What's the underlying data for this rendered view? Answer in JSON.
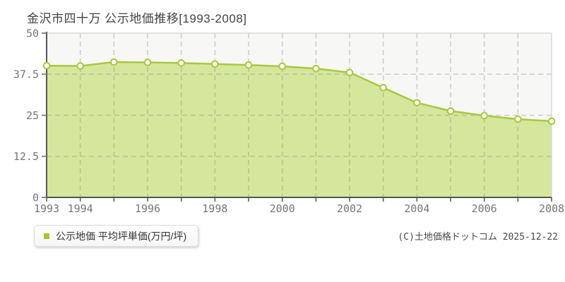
{
  "title": "金沢市四十万 公示地価推移[1993-2008]",
  "legend": {
    "label": "公示地価 平均坪単価(万円/坪)"
  },
  "footer": {
    "copyright": "(C)土地価格ドットコム 2025-12-22"
  },
  "colors": {
    "line": "#a6c93e",
    "fill": "#d5e79c",
    "marker_fill": "#fffef6",
    "axis": "#555555",
    "grid": "#888888",
    "border": "#d8d8d8",
    "tick_label": "#777777",
    "plot_bg": "#f7f7f6",
    "legend_swatch": "#a3c832"
  },
  "chart_data": {
    "type": "area",
    "title": "金沢市四十万 公示地価推移[1993-2008]",
    "series_name": "公示地価 平均坪単価(万円/坪)",
    "ylabel": "万円/坪",
    "x": [
      1993,
      1994,
      1995,
      1996,
      1997,
      1998,
      1999,
      2000,
      2001,
      2002,
      2003,
      2004,
      2005,
      2006,
      2007,
      2008
    ],
    "values": [
      40.1,
      40.0,
      41.2,
      41.1,
      40.9,
      40.6,
      40.3,
      39.9,
      39.2,
      38.0,
      33.4,
      28.8,
      26.3,
      24.9,
      23.8,
      23.2
    ],
    "ylim": [
      0,
      50
    ],
    "yticks": [
      0,
      12.5,
      25,
      37.5,
      50
    ],
    "ytick_labels": [
      "0",
      "12.5",
      "25",
      "37.5",
      "50"
    ],
    "xtick_labeled_years": [
      1993,
      1994,
      1996,
      1998,
      2000,
      2002,
      2004,
      2006,
      2008
    ],
    "grid": "dashed",
    "legend_position": "bottom-left"
  }
}
